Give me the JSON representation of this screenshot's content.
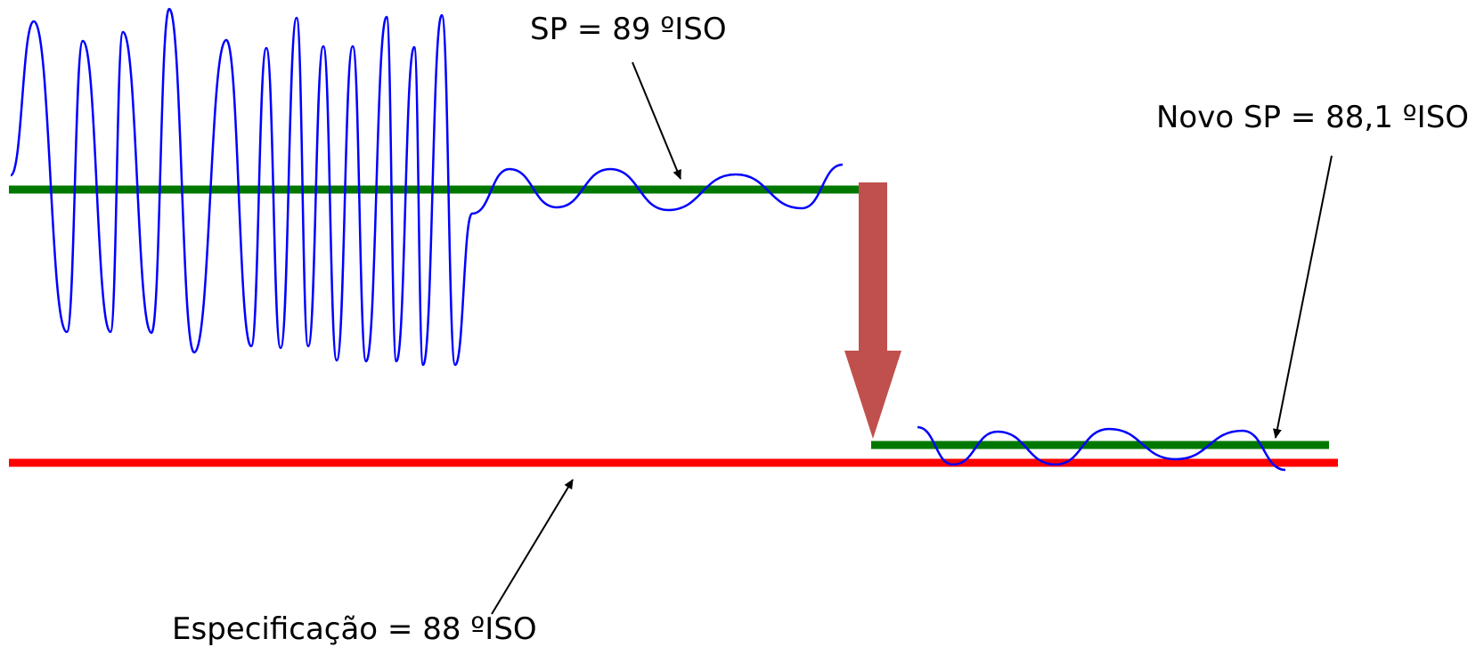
{
  "labels": {
    "sp_old": "SP = 89 ºISO",
    "sp_new": "Novo SP = 88,1 ºISO",
    "spec": "Especificação = 88 ºISO"
  },
  "colors": {
    "setpoint_line": "#007800",
    "spec_line": "#ff0000",
    "process_signal": "#0000ff",
    "shift_arrow": "#c0504d",
    "annotation": "#000000"
  }
}
